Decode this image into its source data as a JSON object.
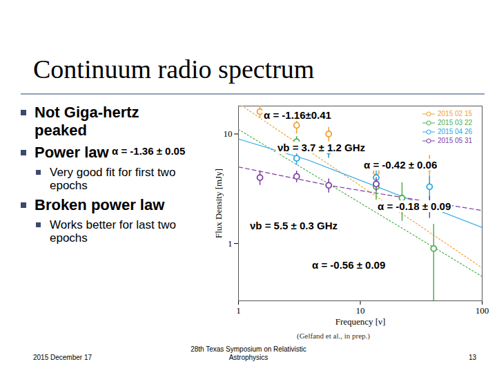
{
  "slide": {
    "title": "Continuum radio spectrum",
    "bullets": [
      {
        "text": "Not Giga-hertz peaked",
        "sub": []
      },
      {
        "text": "Power law",
        "sub": [
          "Very good fit for first two epochs"
        ]
      },
      {
        "text": "Broken power law",
        "sub": [
          "Works better for last two epochs"
        ]
      }
    ],
    "citation": "(Gelfand et al., in prep.)",
    "footer": {
      "date": "2015 December 17",
      "event": "28th Texas Symposium on Relativistic Astrophysics",
      "page": "13"
    }
  },
  "chart_data": {
    "type": "scatter",
    "x_label": "Frequency [ν]",
    "y_label": "Flux Density [mJy]",
    "log": true,
    "grid": false,
    "legend": "top-right",
    "marker": "circle",
    "xlim": [
      1,
      100
    ],
    "xticks": [
      1,
      10,
      100
    ],
    "ylim": [
      0.3,
      18
    ],
    "yticks": [
      1,
      10
    ],
    "series": [
      {
        "name": "2015 02 15",
        "color": "#f0a030",
        "x": [
          1.5,
          3.0,
          5.5,
          13.5,
          37
        ],
        "values": [
          16,
          12,
          10,
          4.5,
          4.9
        ],
        "errors": [
          2,
          2,
          1.5,
          1.2,
          1.5
        ]
      },
      {
        "name": "2015 03 22",
        "color": "#4caf50",
        "x": [
          3.0,
          5.5,
          13.5,
          22,
          40
        ],
        "values": [
          8.5,
          7,
          3.3,
          2.6,
          0.9
        ],
        "errors": [
          1,
          1,
          0.8,
          1,
          0.6
        ]
      },
      {
        "name": "2015 04 26",
        "color": "#29a6e6",
        "x": [
          3.0,
          5.5,
          13.5,
          37
        ],
        "values": [
          6,
          7,
          4,
          3.3
        ],
        "errors": [
          0.8,
          0.8,
          0.6,
          0.8
        ]
      },
      {
        "name": "2015 05 31",
        "color": "#7b3fa0",
        "x": [
          1.5,
          3.0,
          5.5,
          13.5,
          37
        ],
        "values": [
          4,
          4.1,
          3.4,
          3.5,
          2.2
        ],
        "errors": [
          0.6,
          0.5,
          0.5,
          0.5,
          0.5
        ]
      }
    ],
    "fits": [
      {
        "color": "#f0a030",
        "line_style": "dotted",
        "x": [
          1,
          100
        ],
        "values": [
          19,
          0.6
        ]
      },
      {
        "color": "#4caf50",
        "line_style": "dotted",
        "x": [
          1,
          100
        ],
        "values": [
          11,
          0.5
        ]
      },
      {
        "color": "#29a6e6",
        "line_style": "solid",
        "x": [
          1,
          3.7,
          100
        ],
        "values": [
          9,
          5.8,
          1.4
        ]
      },
      {
        "color": "#7b3fa0",
        "line_style": "dashed",
        "x": [
          1,
          5.5,
          100
        ],
        "values": [
          5,
          3.4,
          2.0
        ]
      }
    ],
    "annotations": [
      {
        "text": "α = -1.16±0.41"
      },
      {
        "text": "α = -1.36 ± 0.05"
      },
      {
        "text": "νb = 3.7 ± 1.2 GHz"
      },
      {
        "text": "α = -0.42 ± 0.06"
      },
      {
        "text": "α = -0.18 ± 0.09"
      },
      {
        "text": "νb = 5.5 ± 0.3 GHz"
      },
      {
        "text": "α = -0.56 ± 0.09"
      }
    ]
  }
}
